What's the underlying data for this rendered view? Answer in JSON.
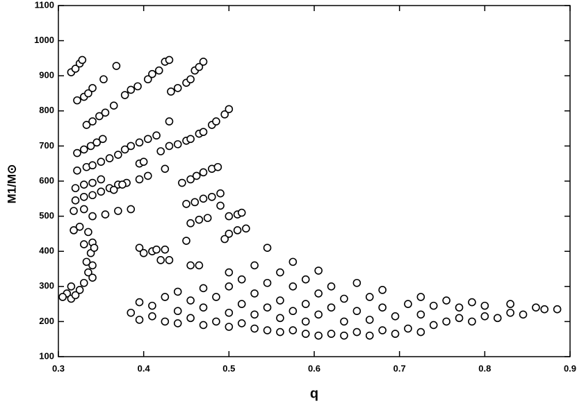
{
  "chart_data": {
    "type": "scatter",
    "xlabel": "q",
    "ylabel": "M1/M⊙",
    "xlim": [
      0.3,
      0.9
    ],
    "xticks": [
      0.3,
      0.4,
      0.5,
      0.6,
      0.7,
      0.8,
      0.9
    ],
    "ylim": [
      100,
      1100
    ],
    "yticks": [
      100,
      200,
      300,
      400,
      500,
      600,
      700,
      800,
      900,
      1000,
      1100
    ],
    "color": "#000000",
    "x": [
      0.315,
      0.32,
      0.325,
      0.328,
      0.322,
      0.33,
      0.335,
      0.34,
      0.353,
      0.368,
      0.333,
      0.34,
      0.348,
      0.355,
      0.365,
      0.378,
      0.385,
      0.393,
      0.405,
      0.41,
      0.418,
      0.425,
      0.43,
      0.322,
      0.33,
      0.338,
      0.345,
      0.352,
      0.378,
      0.385,
      0.395,
      0.405,
      0.415,
      0.43,
      0.432,
      0.44,
      0.45,
      0.455,
      0.46,
      0.465,
      0.47,
      0.322,
      0.333,
      0.34,
      0.35,
      0.36,
      0.37,
      0.395,
      0.4,
      0.42,
      0.43,
      0.44,
      0.45,
      0.455,
      0.465,
      0.47,
      0.48,
      0.485,
      0.495,
      0.5,
      0.32,
      0.33,
      0.34,
      0.35,
      0.36,
      0.37,
      0.38,
      0.395,
      0.405,
      0.425,
      0.445,
      0.455,
      0.462,
      0.47,
      0.48,
      0.487,
      0.32,
      0.33,
      0.34,
      0.35,
      0.365,
      0.375,
      0.45,
      0.46,
      0.47,
      0.48,
      0.49,
      0.49,
      0.318,
      0.33,
      0.34,
      0.355,
      0.37,
      0.385,
      0.455,
      0.465,
      0.475,
      0.5,
      0.51,
      0.515,
      0.5,
      0.51,
      0.52,
      0.495,
      0.318,
      0.325,
      0.335,
      0.33,
      0.34,
      0.338,
      0.342,
      0.333,
      0.34,
      0.335,
      0.34,
      0.33,
      0.325,
      0.315,
      0.31,
      0.305,
      0.315,
      0.32,
      0.395,
      0.4,
      0.41,
      0.415,
      0.425,
      0.42,
      0.43,
      0.45,
      0.455,
      0.465,
      0.385,
      0.395,
      0.395,
      0.41,
      0.41,
      0.425,
      0.425,
      0.44,
      0.44,
      0.44,
      0.455,
      0.455,
      0.47,
      0.47,
      0.47,
      0.485,
      0.485,
      0.5,
      0.5,
      0.5,
      0.5,
      0.515,
      0.515,
      0.515,
      0.53,
      0.53,
      0.53,
      0.53,
      0.545,
      0.545,
      0.545,
      0.545,
      0.56,
      0.56,
      0.56,
      0.56,
      0.575,
      0.575,
      0.575,
      0.575,
      0.59,
      0.59,
      0.59,
      0.59,
      0.605,
      0.605,
      0.605,
      0.605,
      0.62,
      0.62,
      0.62,
      0.635,
      0.635,
      0.635,
      0.65,
      0.65,
      0.65,
      0.665,
      0.665,
      0.665,
      0.68,
      0.68,
      0.68,
      0.695,
      0.695,
      0.71,
      0.71,
      0.725,
      0.725,
      0.725,
      0.74,
      0.74,
      0.755,
      0.755,
      0.77,
      0.77,
      0.785,
      0.785,
      0.8,
      0.8,
      0.815,
      0.83,
      0.83,
      0.845,
      0.86,
      0.87,
      0.885
    ],
    "y": [
      910,
      920,
      935,
      945,
      830,
      840,
      850,
      865,
      890,
      928,
      760,
      770,
      785,
      795,
      815,
      845,
      860,
      870,
      890,
      905,
      915,
      940,
      945,
      680,
      690,
      700,
      710,
      720,
      690,
      700,
      710,
      720,
      730,
      770,
      855,
      865,
      880,
      890,
      915,
      925,
      940,
      630,
      640,
      645,
      655,
      665,
      675,
      650,
      655,
      685,
      700,
      705,
      715,
      720,
      735,
      740,
      760,
      770,
      790,
      805,
      580,
      590,
      595,
      605,
      580,
      590,
      595,
      605,
      615,
      635,
      595,
      605,
      615,
      625,
      635,
      640,
      545,
      555,
      560,
      570,
      575,
      590,
      535,
      540,
      550,
      555,
      565,
      530,
      515,
      520,
      500,
      505,
      515,
      520,
      480,
      490,
      495,
      500,
      505,
      510,
      450,
      460,
      465,
      435,
      460,
      470,
      455,
      420,
      425,
      395,
      410,
      370,
      360,
      340,
      325,
      310,
      290,
      300,
      280,
      270,
      265,
      275,
      410,
      395,
      400,
      405,
      405,
      375,
      375,
      430,
      360,
      360,
      225,
      205,
      255,
      215,
      245,
      200,
      270,
      195,
      230,
      285,
      210,
      260,
      190,
      240,
      295,
      200,
      270,
      185,
      225,
      300,
      340,
      195,
      250,
      320,
      180,
      220,
      280,
      360,
      175,
      240,
      310,
      410,
      170,
      210,
      260,
      340,
      175,
      230,
      300,
      370,
      165,
      200,
      250,
      320,
      160,
      220,
      280,
      345,
      165,
      240,
      300,
      160,
      200,
      265,
      170,
      230,
      310,
      160,
      205,
      270,
      175,
      240,
      290,
      165,
      215,
      180,
      250,
      170,
      220,
      270,
      190,
      245,
      200,
      260,
      210,
      240,
      200,
      255,
      215,
      245,
      210,
      225,
      250,
      220,
      240,
      235,
      235
    ]
  }
}
